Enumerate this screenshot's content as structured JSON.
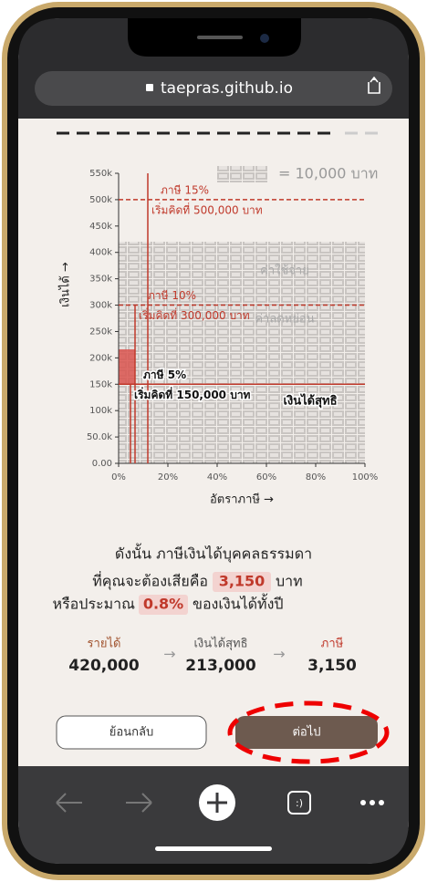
{
  "browser": {
    "url": "taepras.github.io"
  },
  "chart": {
    "legend": "= 10,000 บาท",
    "y_label": "เงินได้ →",
    "x_label": "อัตราภาษี →",
    "yticks": [
      {
        "value": 0,
        "label": "0.00"
      },
      {
        "value": 50000,
        "label": "50.0k"
      },
      {
        "value": 100000,
        "label": "100k"
      },
      {
        "value": 150000,
        "label": "150k"
      },
      {
        "value": 200000,
        "label": "200k"
      },
      {
        "value": 250000,
        "label": "250k"
      },
      {
        "value": 300000,
        "label": "300k"
      },
      {
        "value": 350000,
        "label": "350k"
      },
      {
        "value": 400000,
        "label": "400k"
      },
      {
        "value": 450000,
        "label": "450k"
      },
      {
        "value": 500000,
        "label": "500k"
      },
      {
        "value": 550000,
        "label": "550k"
      }
    ],
    "xticks": [
      {
        "value": 0,
        "label": "0%"
      },
      {
        "value": 20,
        "label": "20%"
      },
      {
        "value": 40,
        "label": "40%"
      },
      {
        "value": 60,
        "label": "60%"
      },
      {
        "value": 80,
        "label": "80%"
      },
      {
        "value": 100,
        "label": "100%"
      }
    ],
    "brackets": [
      {
        "rate": "ภาษี 15%",
        "start": "เริ่มคิดที่ 500,000 บาท",
        "threshold": 500000
      },
      {
        "rate": "ภาษี 10%",
        "start": "เริ่มคิดที่ 300,000 บาท",
        "threshold": 300000
      },
      {
        "rate": "ภาษี 5%",
        "start": "เริ่มคิดที่ 150,000 บาท",
        "threshold": 150000
      }
    ],
    "regions": [
      "ค่าใช้จ่าย",
      "ค่าลดหย่อน",
      "เงินได้สุทธิ"
    ]
  },
  "summary": {
    "line1": "ดังนั้น ภาษีเงินได้บุคคลธรรมดา",
    "line2_prefix": "ที่คุณจะต้องเสียคือ",
    "tax": "3,150",
    "line2_suffix": "บาท",
    "line3_prefix": "หรือประมาณ",
    "percent": "0.8%",
    "line3_suffix": "ของเงินได้ทั้งปี"
  },
  "flow": [
    {
      "label": "รายได้",
      "value": "420,000"
    },
    {
      "label": "เงินได้สุทธิ",
      "value": "213,000"
    },
    {
      "label": "ภาษี",
      "value": "3,150"
    }
  ],
  "buttons": {
    "back": "ย้อนกลับ",
    "next": "ต่อไป"
  }
}
